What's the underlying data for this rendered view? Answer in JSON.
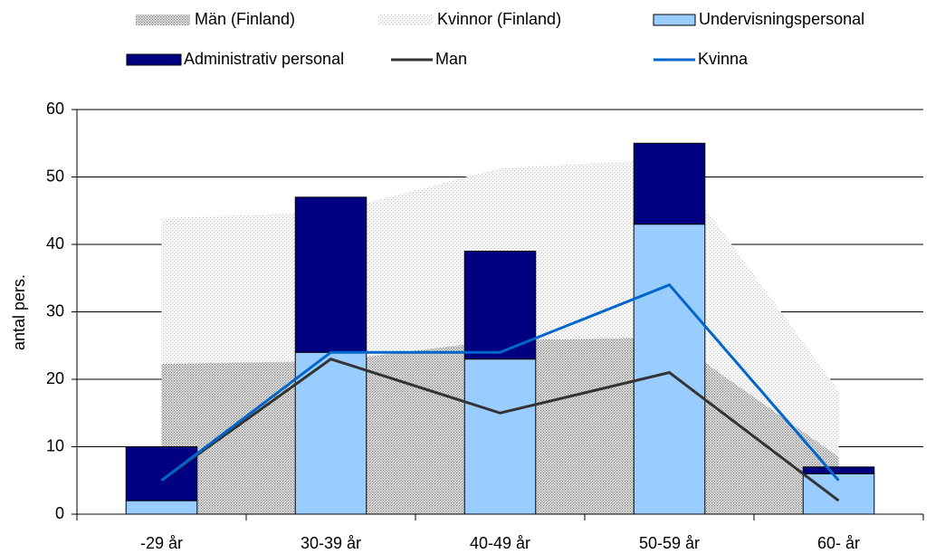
{
  "chart_data": {
    "type": "combo",
    "y_label": "antal pers.",
    "categories": [
      "-29 år",
      "30-39 år",
      "40-49 år",
      "50-59 år",
      "60- år"
    ],
    "ylim": [
      0,
      60
    ],
    "yticks": [
      0,
      10,
      20,
      30,
      40,
      50,
      60
    ],
    "grid": true,
    "legend": "top",
    "series": [
      {
        "name": "Män (Finland)",
        "type": "area",
        "color": "#7a7a7a",
        "values": [
          22.3,
          22.7,
          25.8,
          26.2,
          8.5
        ]
      },
      {
        "name": "Kvinnor (Finland)",
        "type": "area",
        "color": "#c8c8c8",
        "values": [
          21.6,
          22.1,
          25.5,
          26.4,
          9.8
        ]
      },
      {
        "name": "Undervisningspersonal",
        "type": "bar",
        "color": "#99ccff",
        "values": [
          2,
          24,
          23,
          43,
          6
        ]
      },
      {
        "name": "Administrativ personal",
        "type": "bar",
        "color": "#000080",
        "values": [
          8,
          23,
          16,
          12,
          1
        ]
      },
      {
        "name": "Man",
        "type": "line",
        "color": "#333333",
        "values": [
          5,
          23,
          15,
          21,
          2
        ]
      },
      {
        "name": "Kvinna",
        "type": "line",
        "color": "#0066cc",
        "values": [
          5,
          24,
          24,
          34,
          5
        ]
      }
    ]
  }
}
